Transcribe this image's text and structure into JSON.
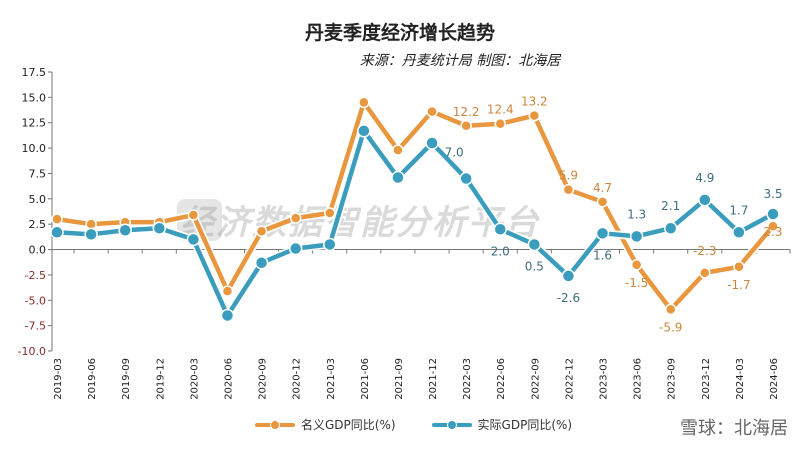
{
  "chart_data": {
    "type": "line",
    "title": "丹麦季度经济增长趋势",
    "subtitle": "来源：丹麦统计局 制图：北海居",
    "xlabel": "",
    "ylabel": "",
    "ylim": [
      -10,
      17.5
    ],
    "yticks": [
      "17.5",
      "15.0",
      "12.5",
      "10.0",
      "7.5",
      "5.0",
      "2.5",
      "0.0",
      "-2.5",
      "-5.0",
      "-7.5",
      "-10.0"
    ],
    "categories": [
      "2019-03",
      "2019-06",
      "2019-09",
      "2019-12",
      "2020-03",
      "2020-06",
      "2020-09",
      "2020-12",
      "2021-03",
      "2021-06",
      "2021-09",
      "2021-12",
      "2022-03",
      "2022-06",
      "2022-09",
      "2022-12",
      "2023-03",
      "2023-06",
      "2023-09",
      "2023-12",
      "2024-03",
      "2024-06"
    ],
    "series": [
      {
        "name": "名义GDP同比(%)",
        "color": "#E8973F",
        "values": [
          3.0,
          2.5,
          2.7,
          2.7,
          3.4,
          -4.1,
          1.8,
          3.1,
          3.6,
          14.5,
          9.8,
          13.6,
          12.2,
          12.4,
          13.2,
          5.9,
          4.7,
          -1.5,
          -5.9,
          -2.3,
          -1.7,
          2.3
        ],
        "labels": [
          null,
          null,
          null,
          null,
          null,
          null,
          null,
          null,
          null,
          null,
          null,
          null,
          "12.2",
          "12.4",
          "13.2",
          "5.9",
          "4.7",
          "-1.5",
          "-5.9",
          "-2.3",
          "-1.7",
          "2.3"
        ]
      },
      {
        "name": "实际GDP同比(%)",
        "color": "#3A9DBE",
        "values": [
          1.7,
          1.5,
          1.9,
          2.1,
          1.0,
          -6.5,
          -1.3,
          0.1,
          0.5,
          11.7,
          7.1,
          10.5,
          7.0,
          2.0,
          0.5,
          -2.6,
          1.6,
          1.3,
          2.1,
          4.9,
          1.7,
          3.5
        ],
        "labels": [
          null,
          null,
          null,
          null,
          null,
          null,
          null,
          null,
          null,
          null,
          null,
          null,
          "7.0",
          "2.0",
          "0.5",
          "-2.6",
          "1.6",
          "1.3",
          "2.1",
          "4.9",
          "1.7",
          "3.5"
        ]
      }
    ],
    "grid": false,
    "legend": "bottom"
  },
  "watermark": "经济数据智能分析平台",
  "credit": "雪球：北海居"
}
